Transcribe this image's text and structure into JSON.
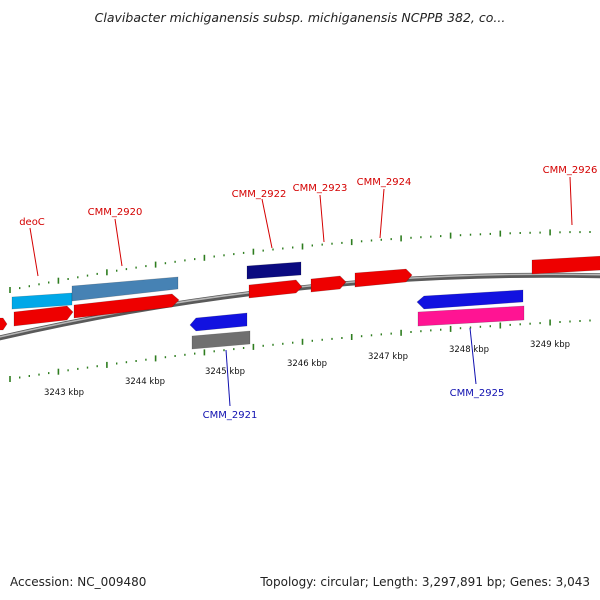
{
  "title": "Clavibacter michiganensis subsp. michiganensis NCPPB 382, co...",
  "footer": {
    "accession": "Accession: NC_009480",
    "summary": "Topology: circular; Length: 3,297,891 bp; Genes: 3,043"
  },
  "colors": {
    "backbone": "#8a8a8a",
    "tick": "#2e7d1f",
    "forward_label": "#d40000",
    "reverse_label": "#1010b0"
  },
  "scale_labels": [
    "3243 kbp",
    "3244 kbp",
    "3245 kbp",
    "3246 kbp",
    "3247 kbp",
    "3248 kbp",
    "3249 kbp"
  ],
  "gene_labels": [
    {
      "id": "deoC",
      "text": "deoC",
      "strand": "forward"
    },
    {
      "id": "cmm-2920",
      "text": "CMM_2920",
      "strand": "forward"
    },
    {
      "id": "cmm-2922",
      "text": "CMM_2922",
      "strand": "forward"
    },
    {
      "id": "cmm-2923",
      "text": "CMM_2923",
      "strand": "forward"
    },
    {
      "id": "cmm-2924",
      "text": "CMM_2924",
      "strand": "forward"
    },
    {
      "id": "cmm-2926",
      "text": "CMM_2926",
      "strand": "forward"
    },
    {
      "id": "cmm-2921",
      "text": "CMM_2921",
      "strand": "reverse"
    },
    {
      "id": "cmm-2925",
      "text": "CMM_2925",
      "strand": "reverse"
    }
  ],
  "features": [
    {
      "id": "cog-left",
      "color": "#00a8e8"
    },
    {
      "id": "cog-2920",
      "color": "#4682b4"
    },
    {
      "id": "cog-2922",
      "color": "#0a0a80"
    },
    {
      "id": "cog-2921",
      "color": "#707070"
    },
    {
      "id": "cog-2925",
      "color": "#ff1493"
    },
    {
      "id": "gene-fwd-0",
      "color": "#ee0000"
    },
    {
      "id": "gene-deoC",
      "color": "#ee0000"
    },
    {
      "id": "gene-2920",
      "color": "#ee0000"
    },
    {
      "id": "gene-2922",
      "color": "#ee0000"
    },
    {
      "id": "gene-2923",
      "color": "#ee0000"
    },
    {
      "id": "gene-2924",
      "color": "#ee0000"
    },
    {
      "id": "gene-2926",
      "color": "#ee0000"
    },
    {
      "id": "gene-2921",
      "color": "#1212e0"
    },
    {
      "id": "gene-2925",
      "color": "#1212e0"
    }
  ]
}
